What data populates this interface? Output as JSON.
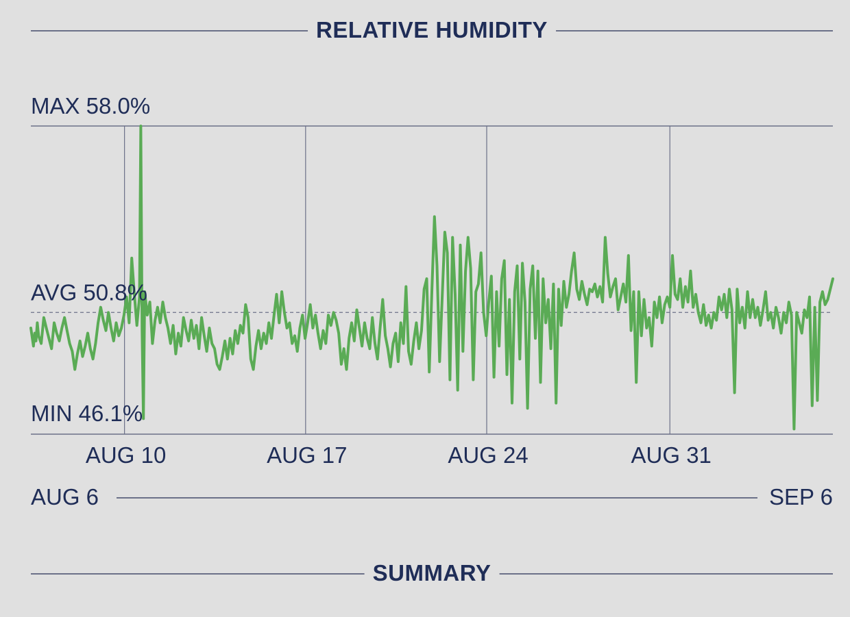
{
  "header": {
    "title": "RELATIVE HUMIDITY"
  },
  "footer": {
    "title": "SUMMARY"
  },
  "range": {
    "start": "AUG 6",
    "end": "SEP 6"
  },
  "colors": {
    "line": "#5aab55",
    "text": "#1f2d57",
    "rule": "#6b7088",
    "background": "#e0e0e0"
  },
  "chart_data": {
    "type": "line",
    "title": "RELATIVE HUMIDITY",
    "xlabel": "",
    "ylabel": "",
    "ylim": [
      46.1,
      58.0
    ],
    "xlim_days": [
      0,
      31
    ],
    "grid": true,
    "stats": [
      {
        "label": "MAX 58.0%",
        "value": 58.0
      },
      {
        "label": "AVG 50.8%",
        "value": 50.8
      },
      {
        "label": "MIN 46.1%",
        "value": 46.1
      }
    ],
    "x_ticks": [
      {
        "label": "AUG 10",
        "day": 3.62
      },
      {
        "label": "AUG 17",
        "day": 10.62
      },
      {
        "label": "AUG 24",
        "day": 17.62
      },
      {
        "label": "AUG 31",
        "day": 24.7
      }
    ],
    "series": [
      {
        "points": [
          [
            0.0,
            50.2
          ],
          [
            0.1,
            49.5
          ],
          [
            0.15,
            50.0
          ],
          [
            0.2,
            49.7
          ],
          [
            0.25,
            50.4
          ],
          [
            0.3,
            49.9
          ],
          [
            0.4,
            49.6
          ],
          [
            0.5,
            50.6
          ],
          [
            0.6,
            50.2
          ],
          [
            0.7,
            49.8
          ],
          [
            0.8,
            49.4
          ],
          [
            0.9,
            50.4
          ],
          [
            1.0,
            50.0
          ],
          [
            1.1,
            49.7
          ],
          [
            1.2,
            50.2
          ],
          [
            1.3,
            50.6
          ],
          [
            1.4,
            50.1
          ],
          [
            1.5,
            49.6
          ],
          [
            1.6,
            49.3
          ],
          [
            1.7,
            48.6
          ],
          [
            1.8,
            49.2
          ],
          [
            1.9,
            49.7
          ],
          [
            2.0,
            49.1
          ],
          [
            2.1,
            49.5
          ],
          [
            2.2,
            50.0
          ],
          [
            2.3,
            49.4
          ],
          [
            2.4,
            49.0
          ],
          [
            2.5,
            49.6
          ],
          [
            2.6,
            50.4
          ],
          [
            2.7,
            51.0
          ],
          [
            2.8,
            50.5
          ],
          [
            2.9,
            50.1
          ],
          [
            3.0,
            50.8
          ],
          [
            3.1,
            50.2
          ],
          [
            3.2,
            49.7
          ],
          [
            3.3,
            50.4
          ],
          [
            3.4,
            49.9
          ],
          [
            3.5,
            50.2
          ],
          [
            3.6,
            50.7
          ],
          [
            3.7,
            51.4
          ],
          [
            3.8,
            50.4
          ],
          [
            3.9,
            52.9
          ],
          [
            4.0,
            51.5
          ],
          [
            4.1,
            50.3
          ],
          [
            4.2,
            51.4
          ],
          [
            4.25,
            58.0
          ],
          [
            4.3,
            50.1
          ],
          [
            4.35,
            46.7
          ],
          [
            4.4,
            51.6
          ],
          [
            4.5,
            50.7
          ],
          [
            4.6,
            51.2
          ],
          [
            4.7,
            49.6
          ],
          [
            4.8,
            50.5
          ],
          [
            4.9,
            51.0
          ],
          [
            5.0,
            50.4
          ],
          [
            5.1,
            51.2
          ],
          [
            5.2,
            50.6
          ],
          [
            5.3,
            50.2
          ],
          [
            5.4,
            49.6
          ],
          [
            5.5,
            50.3
          ],
          [
            5.6,
            49.2
          ],
          [
            5.7,
            50.0
          ],
          [
            5.8,
            49.5
          ],
          [
            5.9,
            50.6
          ],
          [
            6.0,
            50.1
          ],
          [
            6.1,
            49.7
          ],
          [
            6.2,
            50.5
          ],
          [
            6.3,
            49.8
          ],
          [
            6.4,
            50.3
          ],
          [
            6.5,
            49.4
          ],
          [
            6.6,
            50.6
          ],
          [
            6.7,
            49.9
          ],
          [
            6.8,
            49.3
          ],
          [
            6.9,
            50.2
          ],
          [
            7.0,
            49.6
          ],
          [
            7.1,
            49.4
          ],
          [
            7.2,
            48.8
          ],
          [
            7.3,
            48.6
          ],
          [
            7.4,
            49.1
          ],
          [
            7.5,
            49.7
          ],
          [
            7.6,
            49.0
          ],
          [
            7.7,
            49.8
          ],
          [
            7.8,
            49.2
          ],
          [
            7.9,
            50.1
          ],
          [
            8.0,
            49.6
          ],
          [
            8.1,
            50.3
          ],
          [
            8.2,
            50.0
          ],
          [
            8.3,
            51.1
          ],
          [
            8.4,
            50.6
          ],
          [
            8.5,
            49.0
          ],
          [
            8.6,
            48.6
          ],
          [
            8.7,
            49.5
          ],
          [
            8.8,
            50.1
          ],
          [
            8.9,
            49.4
          ],
          [
            9.0,
            50.0
          ],
          [
            9.1,
            49.6
          ],
          [
            9.2,
            50.4
          ],
          [
            9.3,
            49.8
          ],
          [
            9.4,
            50.7
          ],
          [
            9.5,
            51.5
          ],
          [
            9.6,
            50.4
          ],
          [
            9.7,
            51.6
          ],
          [
            9.8,
            50.8
          ],
          [
            9.9,
            50.2
          ],
          [
            10.0,
            50.4
          ],
          [
            10.1,
            49.6
          ],
          [
            10.2,
            49.9
          ],
          [
            10.3,
            49.3
          ],
          [
            10.4,
            50.2
          ],
          [
            10.5,
            50.7
          ],
          [
            10.6,
            49.8
          ],
          [
            10.7,
            50.4
          ],
          [
            10.8,
            51.1
          ],
          [
            10.9,
            50.2
          ],
          [
            11.0,
            50.7
          ],
          [
            11.1,
            50.0
          ],
          [
            11.2,
            49.4
          ],
          [
            11.3,
            50.1
          ],
          [
            11.4,
            49.6
          ],
          [
            11.5,
            50.7
          ],
          [
            11.6,
            50.3
          ],
          [
            11.7,
            50.8
          ],
          [
            11.8,
            50.5
          ],
          [
            11.9,
            50.0
          ],
          [
            12.0,
            48.8
          ],
          [
            12.1,
            49.4
          ],
          [
            12.2,
            48.6
          ],
          [
            12.3,
            49.8
          ],
          [
            12.4,
            50.4
          ],
          [
            12.5,
            49.7
          ],
          [
            12.6,
            50.9
          ],
          [
            12.7,
            50.2
          ],
          [
            12.8,
            49.5
          ],
          [
            12.9,
            50.4
          ],
          [
            13.0,
            49.8
          ],
          [
            13.1,
            49.4
          ],
          [
            13.2,
            50.6
          ],
          [
            13.3,
            49.6
          ],
          [
            13.4,
            49.0
          ],
          [
            13.5,
            50.2
          ],
          [
            13.6,
            51.3
          ],
          [
            13.7,
            49.9
          ],
          [
            13.8,
            49.4
          ],
          [
            13.9,
            48.7
          ],
          [
            14.0,
            49.6
          ],
          [
            14.1,
            50.0
          ],
          [
            14.2,
            48.9
          ],
          [
            14.3,
            50.4
          ],
          [
            14.4,
            49.6
          ],
          [
            14.5,
            51.8
          ],
          [
            14.6,
            49.3
          ],
          [
            14.7,
            48.8
          ],
          [
            14.8,
            49.7
          ],
          [
            14.9,
            50.4
          ],
          [
            15.0,
            49.4
          ],
          [
            15.1,
            50.1
          ],
          [
            15.2,
            51.7
          ],
          [
            15.3,
            52.1
          ],
          [
            15.4,
            48.5
          ],
          [
            15.5,
            51.6
          ],
          [
            15.6,
            54.5
          ],
          [
            15.7,
            52.6
          ],
          [
            15.8,
            48.9
          ],
          [
            15.9,
            51.4
          ],
          [
            16.0,
            53.9
          ],
          [
            16.1,
            53.1
          ],
          [
            16.2,
            48.2
          ],
          [
            16.3,
            53.7
          ],
          [
            16.4,
            51.5
          ],
          [
            16.5,
            47.8
          ],
          [
            16.6,
            53.4
          ],
          [
            16.7,
            49.3
          ],
          [
            16.8,
            52.4
          ],
          [
            16.9,
            53.7
          ],
          [
            17.0,
            52.5
          ],
          [
            17.1,
            48.2
          ],
          [
            17.2,
            51.6
          ],
          [
            17.3,
            51.9
          ],
          [
            17.4,
            53.1
          ],
          [
            17.5,
            50.8
          ],
          [
            17.6,
            49.9
          ],
          [
            17.7,
            51.2
          ],
          [
            17.8,
            52.2
          ],
          [
            17.9,
            48.3
          ],
          [
            18.0,
            51.6
          ],
          [
            18.1,
            49.5
          ],
          [
            18.2,
            52.1
          ],
          [
            18.3,
            52.8
          ],
          [
            18.4,
            48.4
          ],
          [
            18.5,
            51.3
          ],
          [
            18.6,
            47.3
          ],
          [
            18.7,
            51.6
          ],
          [
            18.8,
            52.6
          ],
          [
            18.9,
            49.0
          ],
          [
            19.0,
            52.7
          ],
          [
            19.1,
            51.2
          ],
          [
            19.2,
            47.1
          ],
          [
            19.3,
            51.7
          ],
          [
            19.4,
            52.6
          ],
          [
            19.5,
            49.8
          ],
          [
            19.6,
            52.4
          ],
          [
            19.7,
            48.1
          ],
          [
            19.8,
            52.1
          ],
          [
            19.9,
            50.4
          ],
          [
            20.0,
            51.3
          ],
          [
            20.1,
            49.4
          ],
          [
            20.2,
            51.9
          ],
          [
            20.3,
            47.3
          ],
          [
            20.4,
            51.7
          ],
          [
            20.5,
            50.3
          ],
          [
            20.6,
            52.0
          ],
          [
            20.7,
            51.0
          ],
          [
            20.8,
            51.5
          ],
          [
            20.9,
            52.4
          ],
          [
            21.0,
            53.1
          ],
          [
            21.1,
            51.7
          ],
          [
            21.2,
            51.3
          ],
          [
            21.3,
            52.0
          ],
          [
            21.4,
            51.5
          ],
          [
            21.5,
            51.1
          ],
          [
            21.6,
            51.7
          ],
          [
            21.7,
            51.6
          ],
          [
            21.8,
            51.9
          ],
          [
            21.9,
            51.4
          ],
          [
            22.0,
            51.8
          ],
          [
            22.1,
            51.2
          ],
          [
            22.2,
            53.7
          ],
          [
            22.3,
            52.3
          ],
          [
            22.4,
            51.4
          ],
          [
            22.5,
            51.8
          ],
          [
            22.6,
            52.1
          ],
          [
            22.7,
            50.9
          ],
          [
            22.8,
            51.4
          ],
          [
            22.9,
            51.9
          ],
          [
            23.0,
            51.2
          ],
          [
            23.1,
            53.0
          ],
          [
            23.2,
            50.1
          ],
          [
            23.3,
            51.6
          ],
          [
            23.4,
            48.1
          ],
          [
            23.5,
            51.6
          ],
          [
            23.6,
            49.9
          ],
          [
            23.7,
            51.3
          ],
          [
            23.8,
            50.2
          ],
          [
            23.9,
            50.6
          ],
          [
            24.0,
            49.5
          ],
          [
            24.1,
            51.2
          ],
          [
            24.2,
            50.6
          ],
          [
            24.3,
            51.4
          ],
          [
            24.4,
            50.4
          ],
          [
            24.5,
            51.1
          ],
          [
            24.6,
            51.4
          ],
          [
            24.7,
            51.0
          ],
          [
            24.8,
            53.0
          ],
          [
            24.9,
            51.5
          ],
          [
            25.0,
            51.3
          ],
          [
            25.1,
            52.1
          ],
          [
            25.2,
            51.0
          ],
          [
            25.3,
            51.8
          ],
          [
            25.4,
            51.2
          ],
          [
            25.5,
            52.4
          ],
          [
            25.6,
            51.0
          ],
          [
            25.7,
            51.5
          ],
          [
            25.8,
            50.8
          ],
          [
            25.9,
            50.4
          ],
          [
            26.0,
            51.1
          ],
          [
            26.1,
            50.3
          ],
          [
            26.2,
            50.7
          ],
          [
            26.3,
            50.2
          ],
          [
            26.4,
            50.8
          ],
          [
            26.5,
            50.5
          ],
          [
            26.6,
            51.4
          ],
          [
            26.7,
            50.9
          ],
          [
            26.8,
            51.5
          ],
          [
            26.9,
            50.6
          ],
          [
            27.0,
            51.7
          ],
          [
            27.1,
            50.9
          ],
          [
            27.2,
            47.7
          ],
          [
            27.3,
            51.7
          ],
          [
            27.4,
            50.4
          ],
          [
            27.5,
            51.0
          ],
          [
            27.6,
            50.2
          ],
          [
            27.7,
            51.6
          ],
          [
            27.8,
            50.6
          ],
          [
            27.9,
            51.3
          ],
          [
            28.0,
            50.6
          ],
          [
            28.1,
            51.0
          ],
          [
            28.2,
            50.3
          ],
          [
            28.3,
            50.9
          ],
          [
            28.4,
            51.6
          ],
          [
            28.5,
            50.5
          ],
          [
            28.6,
            50.8
          ],
          [
            28.7,
            50.2
          ],
          [
            28.8,
            51.0
          ],
          [
            28.9,
            50.6
          ],
          [
            29.0,
            50.0
          ],
          [
            29.1,
            50.8
          ],
          [
            29.2,
            50.4
          ],
          [
            29.3,
            51.2
          ],
          [
            29.4,
            50.7
          ],
          [
            29.5,
            46.3
          ],
          [
            29.6,
            50.8
          ],
          [
            29.7,
            50.4
          ],
          [
            29.8,
            50.0
          ],
          [
            29.9,
            50.9
          ],
          [
            30.0,
            50.6
          ],
          [
            30.1,
            51.4
          ],
          [
            30.2,
            47.2
          ],
          [
            30.3,
            51.0
          ],
          [
            30.4,
            47.4
          ],
          [
            30.5,
            51.2
          ],
          [
            30.6,
            51.6
          ],
          [
            30.7,
            51.1
          ],
          [
            30.8,
            51.3
          ],
          [
            31.0,
            52.1
          ]
        ]
      }
    ]
  }
}
